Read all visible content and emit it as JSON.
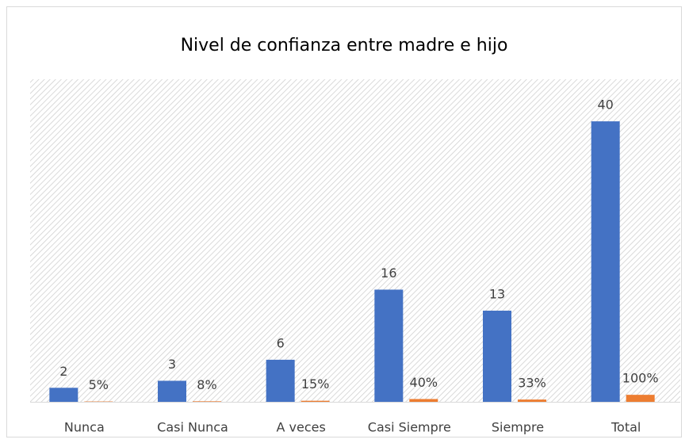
{
  "chart_data": {
    "type": "bar",
    "title": "Nivel de confianza entre madre e hijo",
    "categories": [
      "Nunca",
      "Casi Nunca",
      "A veces",
      "Casi Siempre",
      "Siempre",
      "Total"
    ],
    "series": [
      {
        "color": "#4472c4",
        "values": [
          2,
          3,
          6,
          16,
          13,
          40
        ]
      },
      {
        "color": "#ed7d31",
        "values": [
          0.05,
          0.075,
          0.15,
          0.4,
          0.325,
          1
        ],
        "value_labels": [
          "5%",
          "8%",
          "15%",
          "40%",
          "33%",
          "100%"
        ]
      }
    ],
    "ylim": [
      0,
      46
    ]
  }
}
